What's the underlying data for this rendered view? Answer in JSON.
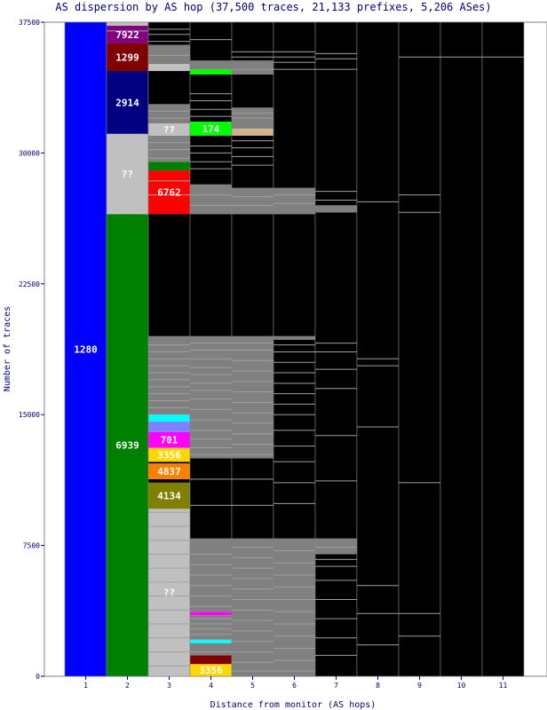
{
  "chart_data": {
    "type": "bar",
    "title": "AS dispersion by AS hop (37,500 traces, 21,133 prefixes, 5,206 ASes)",
    "xlabel": "Distance from monitor (AS hops)",
    "ylabel": "Number of traces",
    "ylim": [
      0,
      37500
    ],
    "yticks": [
      "0",
      "7500",
      "15000",
      "22500",
      "30000",
      "37500"
    ],
    "categories": [
      "1",
      "2",
      "3",
      "4",
      "5",
      "6",
      "7",
      "8",
      "9",
      "10",
      "11"
    ],
    "background_color": "#000000",
    "stacks": [
      {
        "hop": "1",
        "segments": [
          {
            "label": "1280",
            "start": 0,
            "end": 37500,
            "color": "#0000ff"
          }
        ]
      },
      {
        "hop": "2",
        "segments": [
          {
            "label": "6939",
            "start": 0,
            "end": 26500,
            "color": "#008000"
          },
          {
            "label": "??",
            "start": 26500,
            "end": 31100,
            "color": "#c0c0c0"
          },
          {
            "label": "2914",
            "start": 31100,
            "end": 34700,
            "color": "#000080"
          },
          {
            "label": "1299",
            "start": 34700,
            "end": 36300,
            "color": "#800000"
          },
          {
            "label": "7922",
            "start": 36300,
            "end": 37300,
            "color": "#800080"
          },
          {
            "label": "",
            "start": 37300,
            "end": 37500,
            "color": "#c0c0c0"
          }
        ]
      },
      {
        "hop": "3",
        "segments": [
          {
            "label": "??",
            "start": 0,
            "end": 9600,
            "color": "#c0c0c0"
          },
          {
            "label": "4134",
            "start": 9600,
            "end": 11100,
            "color": "#808000"
          },
          {
            "label": "",
            "start": 11100,
            "end": 11300,
            "color": "#000000"
          },
          {
            "label": "4837",
            "start": 11300,
            "end": 12200,
            "color": "#ff8000"
          },
          {
            "label": "",
            "start": 12200,
            "end": 12300,
            "color": "#000000"
          },
          {
            "label": "3356",
            "start": 12300,
            "end": 13100,
            "color": "#ffd700"
          },
          {
            "label": "701",
            "start": 13100,
            "end": 14000,
            "color": "#ff00ff"
          },
          {
            "label": "",
            "start": 14000,
            "end": 14600,
            "color": "#8080ff"
          },
          {
            "label": "",
            "start": 14600,
            "end": 15000,
            "color": "#00ffff"
          },
          {
            "label": "",
            "start": 15000,
            "end": 19500,
            "color": "#808080"
          },
          {
            "label": "",
            "start": 19500,
            "end": 26500,
            "color": "#000000"
          },
          {
            "label": "6762",
            "start": 26500,
            "end": 29000,
            "color": "#ff0000"
          },
          {
            "label": "",
            "start": 29000,
            "end": 29500,
            "color": "#008000"
          },
          {
            "label": "",
            "start": 29500,
            "end": 31000,
            "color": "#808080"
          },
          {
            "label": "??",
            "start": 31000,
            "end": 31700,
            "color": "#c0c0c0"
          },
          {
            "label": "",
            "start": 31700,
            "end": 32800,
            "color": "#808080"
          },
          {
            "label": "",
            "start": 32800,
            "end": 34700,
            "color": "#000000"
          },
          {
            "label": "",
            "start": 34700,
            "end": 35100,
            "color": "#c0c0c0"
          },
          {
            "label": "",
            "start": 35100,
            "end": 36200,
            "color": "#808080"
          },
          {
            "label": "",
            "start": 36200,
            "end": 37500,
            "color": "#000000"
          }
        ]
      },
      {
        "hop": "4",
        "segments": [
          {
            "label": "3356",
            "start": 0,
            "end": 700,
            "color": "#ffd700"
          },
          {
            "label": "",
            "start": 700,
            "end": 1200,
            "color": "#800000"
          },
          {
            "label": "",
            "start": 1200,
            "end": 1900,
            "color": "#808080"
          },
          {
            "label": "",
            "start": 1900,
            "end": 2100,
            "color": "#00ffff"
          },
          {
            "label": "",
            "start": 2100,
            "end": 3500,
            "color": "#808080"
          },
          {
            "label": "",
            "start": 3500,
            "end": 3700,
            "color": "#ff00ff"
          },
          {
            "label": "",
            "start": 3700,
            "end": 7900,
            "color": "#808080"
          },
          {
            "label": "",
            "start": 7900,
            "end": 12500,
            "color": "#000000"
          },
          {
            "label": "",
            "start": 12500,
            "end": 19500,
            "color": "#808080"
          },
          {
            "label": "",
            "start": 19500,
            "end": 26500,
            "color": "#000000"
          },
          {
            "label": "",
            "start": 26500,
            "end": 28200,
            "color": "#808080"
          },
          {
            "label": "",
            "start": 28200,
            "end": 31000,
            "color": "#000000"
          },
          {
            "label": "174",
            "start": 31000,
            "end": 31800,
            "color": "#00ff00"
          },
          {
            "label": "",
            "start": 31800,
            "end": 34500,
            "color": "#000000"
          },
          {
            "label": "",
            "start": 34500,
            "end": 34800,
            "color": "#00ff00"
          },
          {
            "label": "",
            "start": 34800,
            "end": 35300,
            "color": "#808080"
          },
          {
            "label": "",
            "start": 35300,
            "end": 37500,
            "color": "#000000"
          }
        ]
      },
      {
        "hop": "5",
        "segments": [
          {
            "label": "",
            "start": 0,
            "end": 7900,
            "color": "#808080"
          },
          {
            "label": "",
            "start": 7900,
            "end": 12500,
            "color": "#000000"
          },
          {
            "label": "",
            "start": 12500,
            "end": 19500,
            "color": "#808080"
          },
          {
            "label": "",
            "start": 19500,
            "end": 26500,
            "color": "#000000"
          },
          {
            "label": "",
            "start": 26500,
            "end": 28000,
            "color": "#808080"
          },
          {
            "label": "",
            "start": 28000,
            "end": 31000,
            "color": "#000000"
          },
          {
            "label": "",
            "start": 31000,
            "end": 31400,
            "color": "#d2b48c"
          },
          {
            "label": "",
            "start": 31400,
            "end": 32600,
            "color": "#808080"
          },
          {
            "label": "",
            "start": 32600,
            "end": 34500,
            "color": "#000000"
          },
          {
            "label": "",
            "start": 34500,
            "end": 35300,
            "color": "#808080"
          },
          {
            "label": "",
            "start": 35300,
            "end": 37500,
            "color": "#000000"
          }
        ]
      },
      {
        "hop": "6",
        "segments": [
          {
            "label": "",
            "start": 0,
            "end": 7900,
            "color": "#808080"
          },
          {
            "label": "",
            "start": 7900,
            "end": 19300,
            "color": "#000000"
          },
          {
            "label": "",
            "start": 19300,
            "end": 19500,
            "color": "#808080"
          },
          {
            "label": "",
            "start": 19500,
            "end": 26500,
            "color": "#000000"
          },
          {
            "label": "",
            "start": 26500,
            "end": 28000,
            "color": "#808080"
          },
          {
            "label": "",
            "start": 28000,
            "end": 37500,
            "color": "#000000"
          }
        ]
      },
      {
        "hop": "7",
        "segments": [
          {
            "label": "",
            "start": 0,
            "end": 7000,
            "color": "#000000"
          },
          {
            "label": "",
            "start": 7000,
            "end": 7900,
            "color": "#808080"
          },
          {
            "label": "",
            "start": 7900,
            "end": 26600,
            "color": "#000000"
          },
          {
            "label": "",
            "start": 26600,
            "end": 27000,
            "color": "#808080"
          },
          {
            "label": "",
            "start": 27000,
            "end": 37500,
            "color": "#000000"
          }
        ]
      },
      {
        "hop": "8",
        "segments": [
          {
            "label": "",
            "start": 0,
            "end": 37500,
            "color": "#000000"
          }
        ]
      },
      {
        "hop": "9",
        "segments": [
          {
            "label": "",
            "start": 0,
            "end": 37500,
            "color": "#000000"
          }
        ]
      },
      {
        "hop": "10",
        "segments": [
          {
            "label": "",
            "start": 0,
            "end": 37500,
            "color": "#000000"
          }
        ]
      },
      {
        "hop": "11",
        "segments": [
          {
            "label": "",
            "start": 0,
            "end": 37500,
            "color": "#000000"
          }
        ]
      }
    ],
    "separator_lines": [
      {
        "hop": "2",
        "values": [
          37000
        ]
      },
      {
        "hop": "3",
        "values": [
          600,
          1400,
          2200,
          3000,
          3800,
          4600,
          5400,
          6200,
          7000,
          7800,
          8600,
          9400,
          15400,
          15800,
          16200,
          16600,
          17000,
          17400,
          17800,
          18200,
          18600,
          19000,
          27600,
          28400,
          29700,
          30200,
          30600,
          32000,
          32400,
          35600,
          36400,
          36800,
          37100
        ]
      },
      {
        "hop": "4",
        "values": [
          1400,
          2400,
          2700,
          3000,
          3300,
          4000,
          4600,
          5200,
          5800,
          6400,
          7000,
          9800,
          11300,
          12700,
          13100,
          13600,
          14100,
          14700,
          15300,
          15900,
          16400,
          16800,
          17300,
          17700,
          18200,
          18700,
          19100,
          27000,
          27600,
          29100,
          29500,
          30000,
          30400,
          32100,
          32500,
          33000,
          33400,
          36500
        ]
      },
      {
        "hop": "5",
        "values": [
          300,
          800,
          1400,
          2000,
          2600,
          3200,
          3800,
          4400,
          5000,
          5600,
          6200,
          6800,
          7400,
          9800,
          11300,
          12700,
          13300,
          13900,
          14500,
          15100,
          15700,
          16300,
          16900,
          17500,
          18100,
          18700,
          19100,
          27000,
          27500,
          29300,
          29800,
          30300,
          30700,
          32000,
          32300,
          34800,
          35500,
          35800
        ]
      },
      {
        "hop": "6",
        "values": [
          300,
          900,
          1600,
          2300,
          3000,
          3700,
          4400,
          5100,
          5800,
          6500,
          7200,
          9900,
          11100,
          12300,
          13200,
          14100,
          15000,
          15600,
          16200,
          16800,
          17400,
          18000,
          18600,
          19000,
          27100,
          27600,
          34800,
          35200,
          35500,
          35800
        ]
      },
      {
        "hop": "7",
        "values": [
          1200,
          2200,
          3300,
          4400,
          5500,
          6300,
          6700,
          7400,
          11200,
          13800,
          16500,
          17600,
          18600,
          19100,
          27300,
          27800,
          34800,
          35400,
          35700
        ]
      },
      {
        "hop": "8",
        "values": [
          1800,
          3600,
          5200,
          14300,
          17800,
          18200,
          27200
        ]
      },
      {
        "hop": "9",
        "values": [
          2300,
          3600,
          11100,
          26600,
          27600,
          35500
        ]
      },
      {
        "hop": "10",
        "values": [
          35500
        ]
      },
      {
        "hop": "11",
        "values": [
          35500
        ]
      }
    ]
  }
}
